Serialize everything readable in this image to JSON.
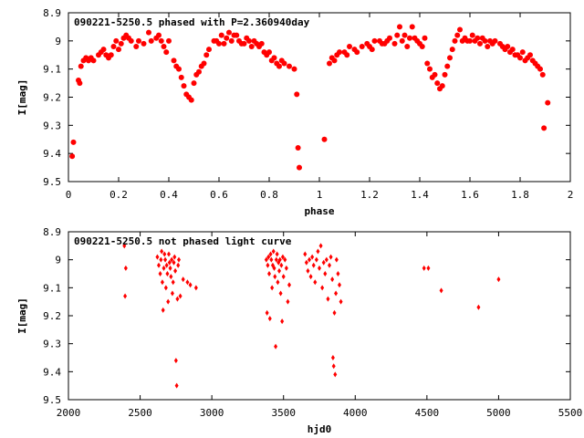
{
  "chart_data": [
    {
      "type": "scatter",
      "title": "090221-5250.5 phased with P=2.360940day",
      "xlabel": "phase",
      "ylabel": "I[mag]",
      "xlim": [
        0,
        2
      ],
      "ylim": [
        9.5,
        8.9
      ],
      "y_inverted": true,
      "xticks": [
        "0",
        "0.2",
        "0.4",
        "0.6",
        "0.8",
        "1",
        "1.2",
        "1.4",
        "1.6",
        "1.8",
        "2"
      ],
      "yticks": [
        "8.9",
        "9",
        "9.1",
        "9.2",
        "9.3",
        "9.4",
        "9.5"
      ],
      "grid": false,
      "marker": "filled-circle",
      "color": "#ff0000",
      "points": [
        [
          0.015,
          9.41
        ],
        [
          0.02,
          9.36
        ],
        [
          0.04,
          9.14
        ],
        [
          0.045,
          9.15
        ],
        [
          0.05,
          9.09
        ],
        [
          0.06,
          9.07
        ],
        [
          0.07,
          9.06
        ],
        [
          0.08,
          9.07
        ],
        [
          0.09,
          9.06
        ],
        [
          0.1,
          9.07
        ],
        [
          0.12,
          9.05
        ],
        [
          0.13,
          9.04
        ],
        [
          0.14,
          9.03
        ],
        [
          0.15,
          9.05
        ],
        [
          0.16,
          9.06
        ],
        [
          0.17,
          9.05
        ],
        [
          0.18,
          9.02
        ],
        [
          0.19,
          9.0
        ],
        [
          0.2,
          9.03
        ],
        [
          0.21,
          9.01
        ],
        [
          0.22,
          8.99
        ],
        [
          0.23,
          8.98
        ],
        [
          0.24,
          8.99
        ],
        [
          0.25,
          9.0
        ],
        [
          0.27,
          9.02
        ],
        [
          0.28,
          9.0
        ],
        [
          0.3,
          9.01
        ],
        [
          0.32,
          8.97
        ],
        [
          0.33,
          9.0
        ],
        [
          0.35,
          8.99
        ],
        [
          0.36,
          8.98
        ],
        [
          0.37,
          9.0
        ],
        [
          0.38,
          9.02
        ],
        [
          0.39,
          9.04
        ],
        [
          0.4,
          9.0
        ],
        [
          0.42,
          9.07
        ],
        [
          0.43,
          9.09
        ],
        [
          0.44,
          9.1
        ],
        [
          0.45,
          9.13
        ],
        [
          0.46,
          9.16
        ],
        [
          0.47,
          9.19
        ],
        [
          0.48,
          9.2
        ],
        [
          0.49,
          9.21
        ],
        [
          0.5,
          9.15
        ],
        [
          0.51,
          9.12
        ],
        [
          0.52,
          9.11
        ],
        [
          0.53,
          9.09
        ],
        [
          0.54,
          9.08
        ],
        [
          0.55,
          9.05
        ],
        [
          0.56,
          9.03
        ],
        [
          0.58,
          9.0
        ],
        [
          0.59,
          9.0
        ],
        [
          0.6,
          9.01
        ],
        [
          0.61,
          8.98
        ],
        [
          0.62,
          9.01
        ],
        [
          0.63,
          8.99
        ],
        [
          0.64,
          8.97
        ],
        [
          0.65,
          9.0
        ],
        [
          0.66,
          8.98
        ],
        [
          0.67,
          8.98
        ],
        [
          0.68,
          9.0
        ],
        [
          0.69,
          9.01
        ],
        [
          0.7,
          9.01
        ],
        [
          0.71,
          8.99
        ],
        [
          0.72,
          9.0
        ],
        [
          0.73,
          9.02
        ],
        [
          0.74,
          9.0
        ],
        [
          0.75,
          9.01
        ],
        [
          0.76,
          9.02
        ],
        [
          0.77,
          9.01
        ],
        [
          0.78,
          9.04
        ],
        [
          0.79,
          9.05
        ],
        [
          0.8,
          9.04
        ],
        [
          0.81,
          9.07
        ],
        [
          0.82,
          9.06
        ],
        [
          0.83,
          9.08
        ],
        [
          0.84,
          9.09
        ],
        [
          0.85,
          9.07
        ],
        [
          0.86,
          9.08
        ],
        [
          0.88,
          9.09
        ],
        [
          0.9,
          9.1
        ],
        [
          0.91,
          9.19
        ],
        [
          0.915,
          9.38
        ],
        [
          0.92,
          9.45
        ],
        [
          1.02,
          9.35
        ],
        [
          1.04,
          9.08
        ],
        [
          1.05,
          9.06
        ],
        [
          1.06,
          9.07
        ],
        [
          1.07,
          9.05
        ],
        [
          1.08,
          9.04
        ],
        [
          1.1,
          9.04
        ],
        [
          1.11,
          9.05
        ],
        [
          1.12,
          9.02
        ],
        [
          1.14,
          9.03
        ],
        [
          1.15,
          9.04
        ],
        [
          1.17,
          9.02
        ],
        [
          1.19,
          9.01
        ],
        [
          1.2,
          9.02
        ],
        [
          1.21,
          9.03
        ],
        [
          1.22,
          9.0
        ],
        [
          1.24,
          9.0
        ],
        [
          1.25,
          9.01
        ],
        [
          1.26,
          9.01
        ],
        [
          1.27,
          9.0
        ],
        [
          1.28,
          8.99
        ],
        [
          1.3,
          9.01
        ],
        [
          1.31,
          8.98
        ],
        [
          1.32,
          8.95
        ],
        [
          1.33,
          9.0
        ],
        [
          1.34,
          8.98
        ],
        [
          1.35,
          9.02
        ],
        [
          1.36,
          8.99
        ],
        [
          1.37,
          8.95
        ],
        [
          1.38,
          8.99
        ],
        [
          1.39,
          9.0
        ],
        [
          1.4,
          9.01
        ],
        [
          1.41,
          9.02
        ],
        [
          1.42,
          8.99
        ],
        [
          1.43,
          9.08
        ],
        [
          1.44,
          9.1
        ],
        [
          1.45,
          9.13
        ],
        [
          1.46,
          9.12
        ],
        [
          1.47,
          9.15
        ],
        [
          1.48,
          9.17
        ],
        [
          1.49,
          9.16
        ],
        [
          1.5,
          9.12
        ],
        [
          1.51,
          9.09
        ],
        [
          1.52,
          9.06
        ],
        [
          1.53,
          9.03
        ],
        [
          1.54,
          9.0
        ],
        [
          1.55,
          8.98
        ],
        [
          1.56,
          8.96
        ],
        [
          1.57,
          9.0
        ],
        [
          1.58,
          8.99
        ],
        [
          1.59,
          9.0
        ],
        [
          1.6,
          9.0
        ],
        [
          1.61,
          8.98
        ],
        [
          1.62,
          9.0
        ],
        [
          1.63,
          8.99
        ],
        [
          1.64,
          9.01
        ],
        [
          1.65,
          8.99
        ],
        [
          1.66,
          9.0
        ],
        [
          1.67,
          9.02
        ],
        [
          1.68,
          9.0
        ],
        [
          1.69,
          9.01
        ],
        [
          1.7,
          9.0
        ],
        [
          1.72,
          9.01
        ],
        [
          1.73,
          9.02
        ],
        [
          1.74,
          9.03
        ],
        [
          1.75,
          9.02
        ],
        [
          1.76,
          9.04
        ],
        [
          1.77,
          9.03
        ],
        [
          1.78,
          9.05
        ],
        [
          1.79,
          9.05
        ],
        [
          1.8,
          9.06
        ],
        [
          1.81,
          9.04
        ],
        [
          1.82,
          9.07
        ],
        [
          1.83,
          9.06
        ],
        [
          1.84,
          9.05
        ],
        [
          1.85,
          9.07
        ],
        [
          1.86,
          9.08
        ],
        [
          1.87,
          9.09
        ],
        [
          1.88,
          9.1
        ],
        [
          1.89,
          9.12
        ],
        [
          1.895,
          9.31
        ],
        [
          1.91,
          9.22
        ]
      ]
    },
    {
      "type": "scatter",
      "title": "090221-5250.5 not phased light curve",
      "xlabel": "hjd0",
      "ylabel": "I[mag]",
      "xlim": [
        2000,
        5500
      ],
      "ylim": [
        9.5,
        8.9
      ],
      "y_inverted": true,
      "xticks": [
        "2000",
        "2500",
        "3000",
        "3500",
        "4000",
        "4500",
        "5000",
        "5500"
      ],
      "yticks": [
        "8.9",
        "9",
        "9.1",
        "9.2",
        "9.3",
        "9.4",
        "9.5"
      ],
      "grid": false,
      "marker": "filled-diamond",
      "color": "#ff0000",
      "points": [
        [
          2390,
          8.95
        ],
        [
          2400,
          9.03
        ],
        [
          2395,
          9.13
        ],
        [
          2620,
          8.99
        ],
        [
          2630,
          9.02
        ],
        [
          2640,
          9.05
        ],
        [
          2645,
          9.0
        ],
        [
          2650,
          8.97
        ],
        [
          2655,
          9.08
        ],
        [
          2660,
          9.18
        ],
        [
          2665,
          9.03
        ],
        [
          2670,
          8.98
        ],
        [
          2675,
          9.0
        ],
        [
          2680,
          9.1
        ],
        [
          2685,
          9.02
        ],
        [
          2690,
          9.05
        ],
        [
          2695,
          9.15
        ],
        [
          2700,
          8.98
        ],
        [
          2705,
          9.01
        ],
        [
          2710,
          9.03
        ],
        [
          2715,
          9.06
        ],
        [
          2720,
          9.0
        ],
        [
          2725,
          9.12
        ],
        [
          2730,
          9.08
        ],
        [
          2735,
          9.01
        ],
        [
          2740,
          8.99
        ],
        [
          2745,
          9.04
        ],
        [
          2750,
          9.36
        ],
        [
          2755,
          9.45
        ],
        [
          2760,
          9.14
        ],
        [
          2765,
          9.02
        ],
        [
          2770,
          9.0
        ],
        [
          2780,
          9.13
        ],
        [
          2800,
          9.07
        ],
        [
          2830,
          9.08
        ],
        [
          2850,
          9.09
        ],
        [
          2890,
          9.1
        ],
        [
          3380,
          9.0
        ],
        [
          3385,
          9.19
        ],
        [
          3390,
          9.02
        ],
        [
          3395,
          8.99
        ],
        [
          3400,
          9.05
        ],
        [
          3405,
          9.21
        ],
        [
          3410,
          8.98
        ],
        [
          3415,
          9.0
        ],
        [
          3420,
          9.1
        ],
        [
          3425,
          9.02
        ],
        [
          3430,
          8.97
        ],
        [
          3435,
          9.03
        ],
        [
          3440,
          9.06
        ],
        [
          3445,
          9.31
        ],
        [
          3450,
          9.0
        ],
        [
          3455,
          8.98
        ],
        [
          3460,
          9.08
        ],
        [
          3465,
          9.01
        ],
        [
          3470,
          9.04
        ],
        [
          3475,
          9.0
        ],
        [
          3480,
          9.12
        ],
        [
          3485,
          9.02
        ],
        [
          3490,
          9.22
        ],
        [
          3495,
          8.99
        ],
        [
          3500,
          9.06
        ],
        [
          3510,
          9.0
        ],
        [
          3520,
          9.03
        ],
        [
          3530,
          9.15
        ],
        [
          3540,
          9.09
        ],
        [
          3650,
          8.98
        ],
        [
          3660,
          9.01
        ],
        [
          3670,
          9.04
        ],
        [
          3680,
          9.0
        ],
        [
          3690,
          9.06
        ],
        [
          3700,
          8.99
        ],
        [
          3710,
          9.02
        ],
        [
          3720,
          9.08
        ],
        [
          3730,
          9.0
        ],
        [
          3740,
          8.97
        ],
        [
          3750,
          9.03
        ],
        [
          3760,
          8.95
        ],
        [
          3770,
          9.1
        ],
        [
          3780,
          9.01
        ],
        [
          3790,
          9.05
        ],
        [
          3800,
          9.0
        ],
        [
          3810,
          9.14
        ],
        [
          3820,
          9.02
        ],
        [
          3830,
          8.99
        ],
        [
          3840,
          9.07
        ],
        [
          3845,
          9.35
        ],
        [
          3850,
          9.38
        ],
        [
          3855,
          9.19
        ],
        [
          3860,
          9.41
        ],
        [
          3865,
          9.12
        ],
        [
          3870,
          9.0
        ],
        [
          3880,
          9.05
        ],
        [
          3890,
          9.09
        ],
        [
          3900,
          9.15
        ],
        [
          4480,
          9.03
        ],
        [
          4510,
          9.03
        ],
        [
          4600,
          9.11
        ],
        [
          4860,
          9.17
        ],
        [
          5000,
          9.07
        ]
      ]
    }
  ]
}
